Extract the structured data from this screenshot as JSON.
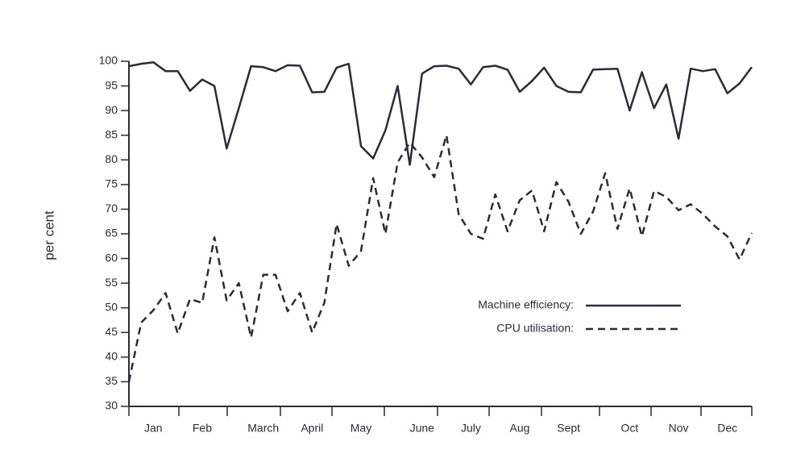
{
  "chart_data": {
    "type": "line",
    "ylabel": "per cent",
    "categories": [
      null,
      null,
      "Jan",
      null,
      null,
      null,
      "Feb",
      null,
      null,
      null,
      null,
      "March",
      null,
      null,
      null,
      "April",
      null,
      null,
      null,
      "May",
      null,
      null,
      null,
      null,
      "June",
      null,
      null,
      null,
      "July",
      null,
      null,
      null,
      "Aug",
      null,
      null,
      null,
      "Sept",
      null,
      null,
      null,
      null,
      "Oct",
      null,
      null,
      null,
      "Nov",
      null,
      null,
      null,
      "Dec",
      null,
      null
    ],
    "series": [
      {
        "name": "Machine efficiency:",
        "color": "#2b2b3b",
        "style": "solid",
        "values": [
          99,
          99.5,
          99.8,
          98,
          98,
          94,
          96.3,
          95,
          82.3,
          90.5,
          99,
          98.8,
          98,
          99.2,
          99.1,
          93.7,
          93.8,
          98.7,
          99.5,
          82.8,
          80.3,
          86,
          95,
          79,
          97.5,
          99,
          99.1,
          98.5,
          95.3,
          98.8,
          99.1,
          98.3,
          93.8,
          96,
          98.7,
          95,
          93.8,
          93.7,
          98.3,
          98.4,
          98.5,
          90,
          97.8,
          90.5,
          95.3,
          84.3,
          98.5,
          98,
          98.4,
          93.5,
          95.5,
          98.8
        ]
      },
      {
        "name": "CPU utilisation:",
        "color": "#2b2b3b",
        "style": "dashed",
        "values": [
          35,
          47,
          49.5,
          53,
          44.8,
          51.8,
          51,
          64.3,
          51.5,
          55,
          44,
          56.7,
          56.7,
          49.3,
          53,
          45,
          51,
          67,
          58.5,
          61.5,
          76.3,
          65,
          79.5,
          83.5,
          80.5,
          76.5,
          85,
          69,
          65,
          64,
          73,
          65.5,
          71.8,
          73.8,
          65.5,
          75.5,
          71.5,
          65,
          69.5,
          77.3,
          66,
          74.2,
          64.5,
          73.7,
          72.5,
          69.8,
          71,
          69,
          66.5,
          64.5,
          59.8,
          65.2
        ]
      }
    ],
    "ylim": [
      30,
      100
    ],
    "yticks": [
      30,
      35,
      40,
      45,
      50,
      55,
      60,
      65,
      70,
      75,
      80,
      85,
      90,
      95,
      100
    ],
    "grid": false
  }
}
